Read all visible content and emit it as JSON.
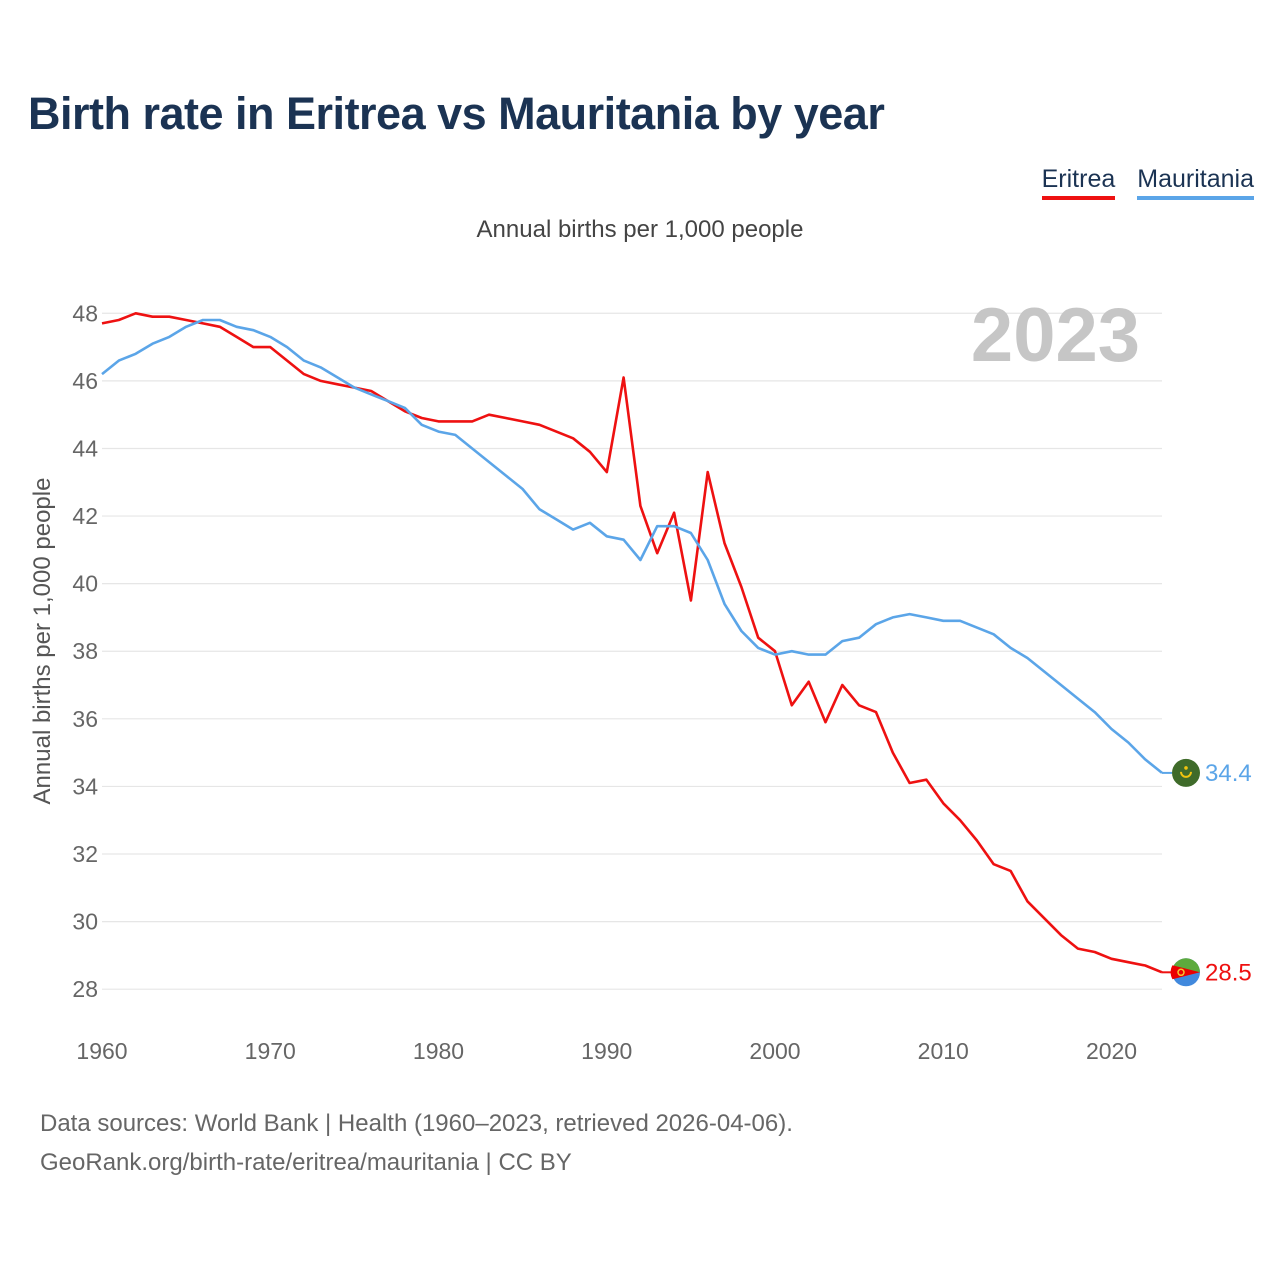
{
  "title": "Birth rate in Eritrea vs Mauritania by year",
  "subtitle": "Annual births per 1,000 people",
  "legend": [
    {
      "name": "Eritrea",
      "color": "#ee1111"
    },
    {
      "name": "Mauritania",
      "color": "#5ba5e8"
    }
  ],
  "footer": {
    "line1": "Data sources: World Bank | Health (1960–2023, retrieved 2026-04-06).",
    "line2": "GeoRank.org/birth-rate/eritrea/mauritania | CC BY"
  },
  "chart_data": {
    "type": "line",
    "title": "Birth rate in Eritrea vs Mauritania by year",
    "subtitle": "Annual births per 1,000 people",
    "ylabel": "Annual births per 1,000 people",
    "xlabel": "",
    "year_label": "2023",
    "xlim": [
      1960,
      2023
    ],
    "ylim": [
      27,
      48.6
    ],
    "x_ticks": [
      1960,
      1970,
      1980,
      1990,
      2000,
      2010,
      2020
    ],
    "y_ticks": [
      28,
      30,
      32,
      34,
      36,
      38,
      40,
      42,
      44,
      46,
      48
    ],
    "x": [
      1960,
      1961,
      1962,
      1963,
      1964,
      1965,
      1966,
      1967,
      1968,
      1969,
      1970,
      1971,
      1972,
      1973,
      1974,
      1975,
      1976,
      1977,
      1978,
      1979,
      1980,
      1981,
      1982,
      1983,
      1984,
      1985,
      1986,
      1987,
      1988,
      1989,
      1990,
      1991,
      1992,
      1993,
      1994,
      1995,
      1996,
      1997,
      1998,
      1999,
      2000,
      2001,
      2002,
      2003,
      2004,
      2005,
      2006,
      2007,
      2008,
      2009,
      2010,
      2011,
      2012,
      2013,
      2014,
      2015,
      2016,
      2017,
      2018,
      2019,
      2020,
      2021,
      2022,
      2023
    ],
    "series": [
      {
        "name": "Eritrea",
        "color": "#ee1111",
        "end_label": "28.5",
        "values": [
          47.7,
          47.8,
          48.0,
          47.9,
          47.9,
          47.8,
          47.7,
          47.6,
          47.3,
          47.0,
          47.0,
          46.6,
          46.2,
          46.0,
          45.9,
          45.8,
          45.7,
          45.4,
          45.1,
          44.9,
          44.8,
          44.8,
          44.8,
          45.0,
          44.9,
          44.8,
          44.7,
          44.5,
          44.3,
          43.9,
          43.3,
          46.1,
          42.3,
          40.9,
          42.1,
          39.5,
          43.3,
          41.2,
          39.9,
          38.4,
          38.0,
          36.4,
          37.1,
          35.9,
          37.0,
          36.4,
          36.2,
          35.0,
          34.1,
          34.2,
          33.5,
          33.0,
          32.4,
          31.7,
          31.5,
          30.6,
          30.1,
          29.6,
          29.2,
          29.1,
          28.9,
          28.8,
          28.7,
          28.5
        ]
      },
      {
        "name": "Mauritania",
        "color": "#5ba5e8",
        "end_label": "34.4",
        "values": [
          46.2,
          46.6,
          46.8,
          47.1,
          47.3,
          47.6,
          47.8,
          47.8,
          47.6,
          47.5,
          47.3,
          47.0,
          46.6,
          46.4,
          46.1,
          45.8,
          45.6,
          45.4,
          45.2,
          44.7,
          44.5,
          44.4,
          44.0,
          43.6,
          43.2,
          42.8,
          42.2,
          41.9,
          41.6,
          41.8,
          41.4,
          41.3,
          40.7,
          41.7,
          41.7,
          41.5,
          40.7,
          39.4,
          38.6,
          38.1,
          37.9,
          38.0,
          37.9,
          37.9,
          38.3,
          38.4,
          38.8,
          39.0,
          39.1,
          39.0,
          38.9,
          38.9,
          38.7,
          38.5,
          38.1,
          37.8,
          37.4,
          37.0,
          36.6,
          36.2,
          35.7,
          35.3,
          34.8,
          34.4
        ]
      }
    ]
  }
}
